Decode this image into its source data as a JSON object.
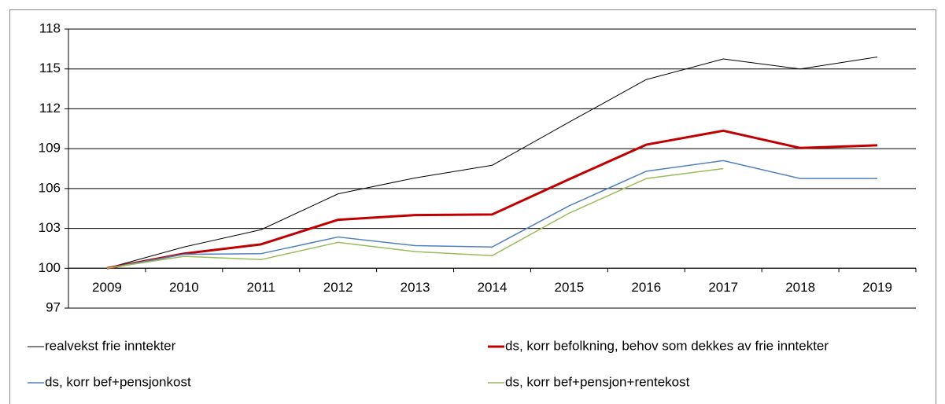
{
  "chart_data": {
    "type": "line",
    "categories": [
      "2009",
      "2010",
      "2011",
      "2012",
      "2013",
      "2014",
      "2015",
      "2016",
      "2017",
      "2018",
      "2019"
    ],
    "series": [
      {
        "name": "realvekst frie inntekter",
        "color": "#000000",
        "width": 1,
        "values": [
          100,
          101.6,
          102.9,
          105.6,
          106.8,
          107.75,
          111.0,
          114.2,
          115.75,
          115.0,
          115.9
        ]
      },
      {
        "name": "ds, korr befolkning, behov som dekkes av frie inntekter",
        "color": "#c00000",
        "width": 3,
        "values": [
          100,
          101.1,
          101.8,
          103.65,
          104.0,
          104.05,
          106.7,
          109.3,
          110.35,
          109.05,
          109.25
        ]
      },
      {
        "name": "ds, korr bef+pensjonkost",
        "color": "#4f81bd",
        "width": 1.5,
        "values": [
          100,
          101.05,
          101.1,
          102.35,
          101.7,
          101.6,
          104.7,
          107.3,
          108.1,
          106.75,
          106.75
        ]
      },
      {
        "name": "ds, korr bef+pensjon+rentekost",
        "color": "#9bbb59",
        "width": 1.5,
        "values": [
          100,
          100.9,
          100.65,
          101.95,
          101.25,
          100.95,
          104.15,
          106.75,
          107.5,
          null,
          null
        ]
      }
    ],
    "ylim": [
      97,
      118
    ],
    "yticks": [
      97,
      100,
      103,
      106,
      109,
      112,
      115,
      118
    ],
    "x_axis_at": 100,
    "grid": true,
    "legend": "bottom"
  }
}
